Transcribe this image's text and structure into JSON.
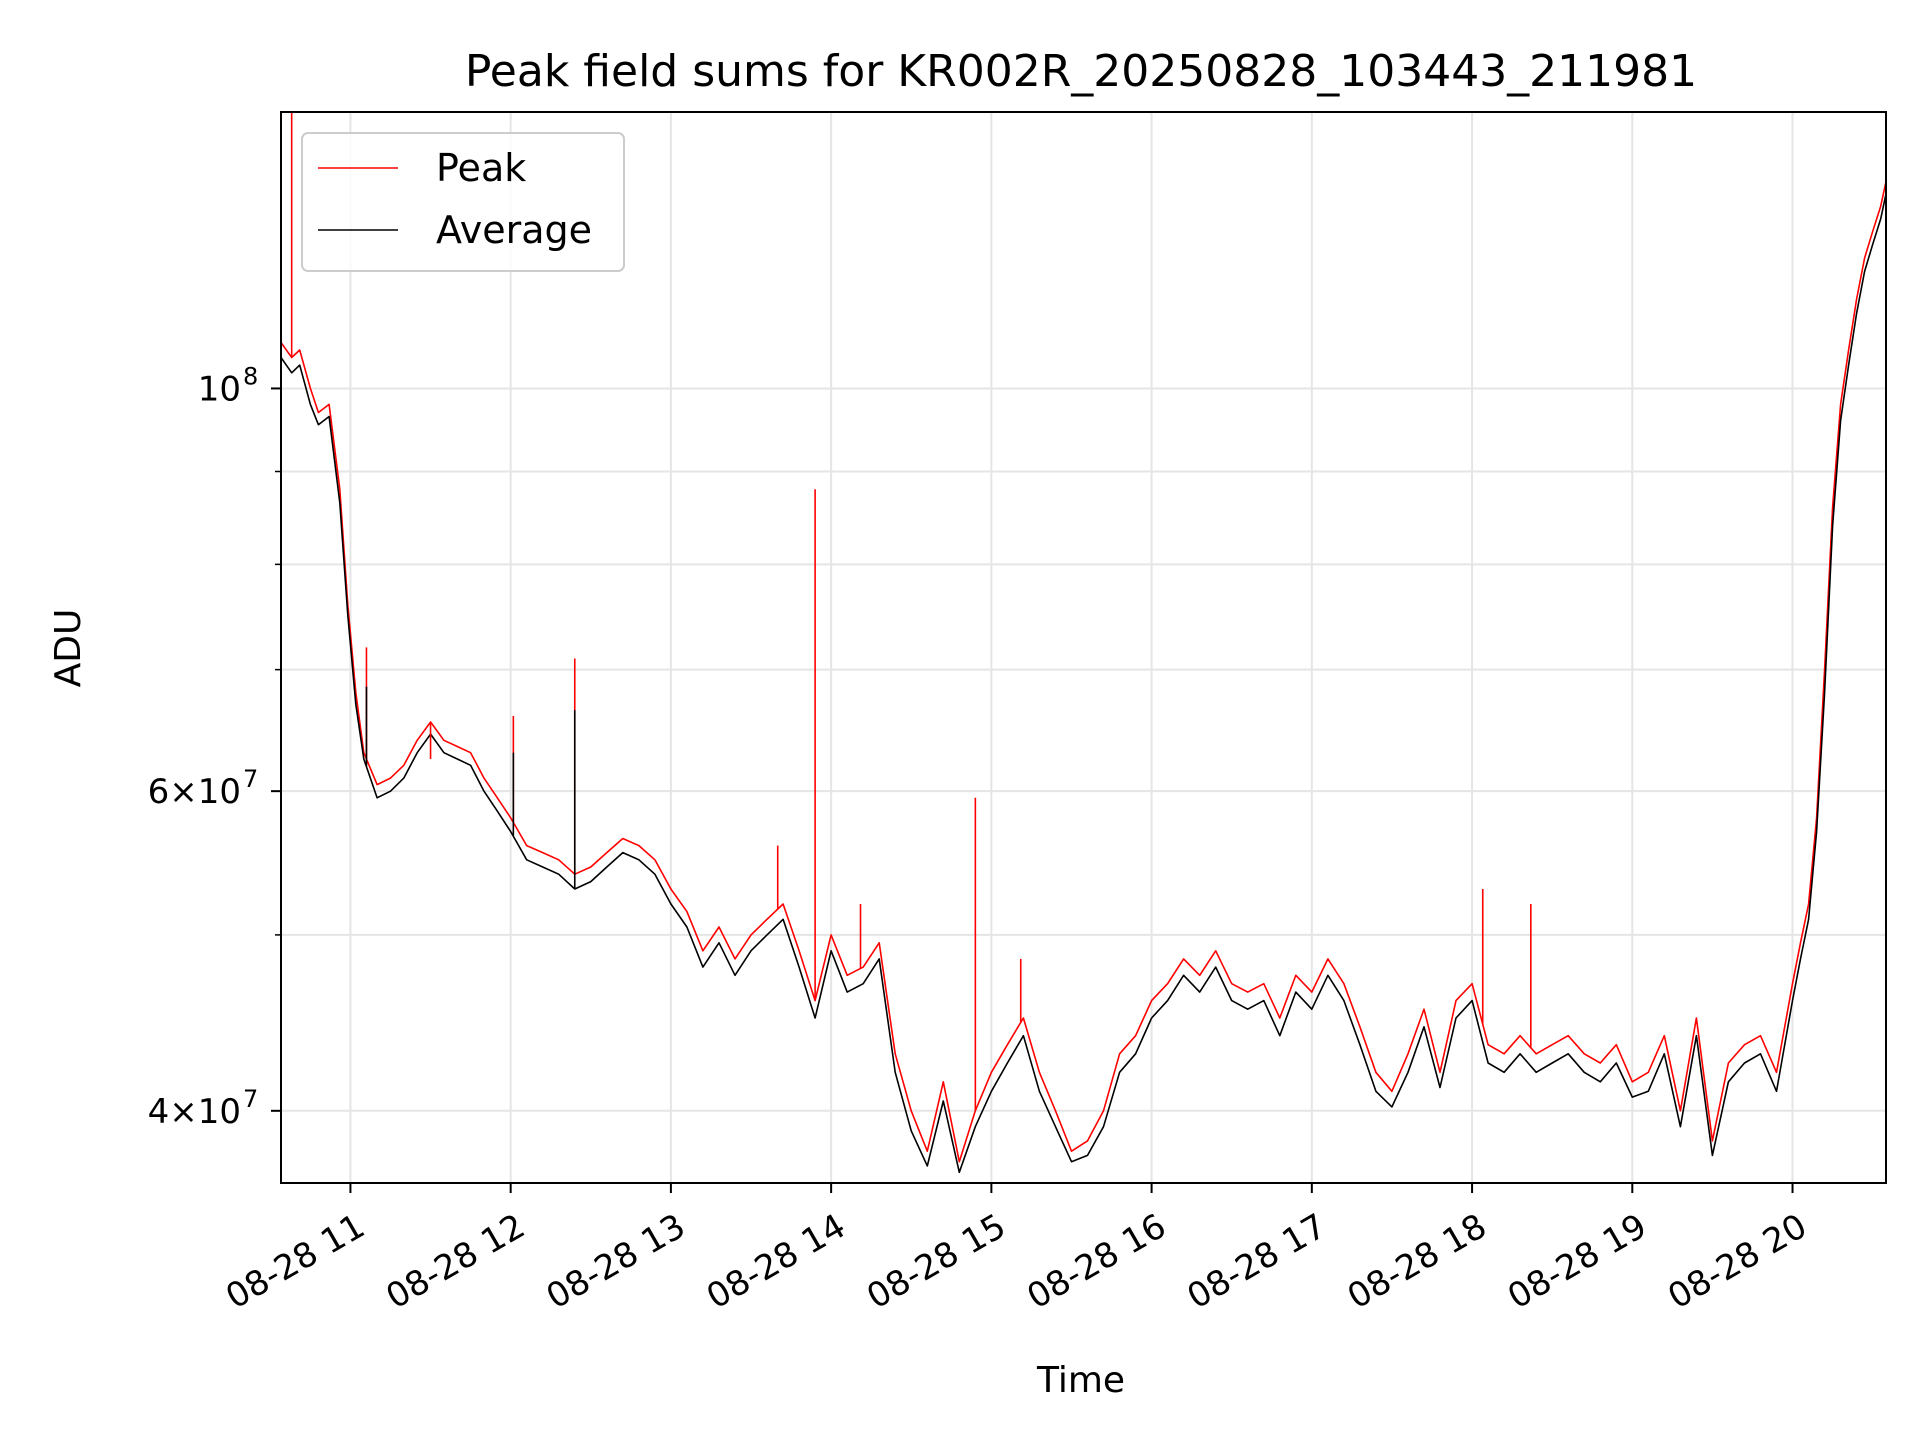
{
  "chart_data": {
    "type": "line",
    "title": "Peak field sums for KR002R_20250828_103443_211981",
    "xlabel": "Time",
    "ylabel": "ADU",
    "yscale": "log",
    "ylim": [
      36500000,
      142000000
    ],
    "xlim": [
      "2025-08-28 10:34",
      "2025-08-28 20:35"
    ],
    "x_ticks": [
      {
        "value": "2025-08-28 11:00",
        "label": "08-28 11"
      },
      {
        "value": "2025-08-28 12:00",
        "label": "08-28 12"
      },
      {
        "value": "2025-08-28 13:00",
        "label": "08-28 13"
      },
      {
        "value": "2025-08-28 14:00",
        "label": "08-28 14"
      },
      {
        "value": "2025-08-28 15:00",
        "label": "08-28 15"
      },
      {
        "value": "2025-08-28 16:00",
        "label": "08-28 16"
      },
      {
        "value": "2025-08-28 17:00",
        "label": "08-28 17"
      },
      {
        "value": "2025-08-28 18:00",
        "label": "08-28 18"
      },
      {
        "value": "2025-08-28 19:00",
        "label": "08-28 19"
      },
      {
        "value": "2025-08-28 20:00",
        "label": "08-28 20"
      }
    ],
    "y_ticks": [
      {
        "value": 40000000,
        "base": "4×10",
        "exp": "7"
      },
      {
        "value": 60000000,
        "base": "6×10",
        "exp": "7"
      },
      {
        "value": 100000000,
        "base": "10",
        "exp": "8"
      }
    ],
    "y_minor_ticks": [
      50000000,
      70000000,
      80000000,
      90000000
    ],
    "grid": true,
    "legend_position": "top-left",
    "series": [
      {
        "name": "Peak",
        "color": "#ff0000",
        "x": [
          "2025-08-28 10:34",
          "2025-08-28 10:38",
          "2025-08-28 10:41",
          "2025-08-28 10:45",
          "2025-08-28 10:48",
          "2025-08-28 10:52",
          "2025-08-28 10:56",
          "2025-08-28 10:59",
          "2025-08-28 11:02",
          "2025-08-28 11:05",
          "2025-08-28 11:10",
          "2025-08-28 11:15",
          "2025-08-28 11:20",
          "2025-08-28 11:25",
          "2025-08-28 11:30",
          "2025-08-28 11:35",
          "2025-08-28 11:40",
          "2025-08-28 11:45",
          "2025-08-28 11:50",
          "2025-08-28 11:55",
          "2025-08-28 12:00",
          "2025-08-28 12:06",
          "2025-08-28 12:12",
          "2025-08-28 12:18",
          "2025-08-28 12:24",
          "2025-08-28 12:30",
          "2025-08-28 12:36",
          "2025-08-28 12:42",
          "2025-08-28 12:48",
          "2025-08-28 12:54",
          "2025-08-28 13:00",
          "2025-08-28 13:06",
          "2025-08-28 13:12",
          "2025-08-28 13:18",
          "2025-08-28 13:24",
          "2025-08-28 13:30",
          "2025-08-28 13:36",
          "2025-08-28 13:42",
          "2025-08-28 13:48",
          "2025-08-28 13:54",
          "2025-08-28 14:00",
          "2025-08-28 14:06",
          "2025-08-28 14:12",
          "2025-08-28 14:18",
          "2025-08-28 14:24",
          "2025-08-28 14:30",
          "2025-08-28 14:36",
          "2025-08-28 14:42",
          "2025-08-28 14:48",
          "2025-08-28 14:54",
          "2025-08-28 15:00",
          "2025-08-28 15:06",
          "2025-08-28 15:12",
          "2025-08-28 15:18",
          "2025-08-28 15:24",
          "2025-08-28 15:30",
          "2025-08-28 15:36",
          "2025-08-28 15:42",
          "2025-08-28 15:48",
          "2025-08-28 15:54",
          "2025-08-28 16:00",
          "2025-08-28 16:06",
          "2025-08-28 16:12",
          "2025-08-28 16:18",
          "2025-08-28 16:24",
          "2025-08-28 16:30",
          "2025-08-28 16:36",
          "2025-08-28 16:42",
          "2025-08-28 16:48",
          "2025-08-28 16:54",
          "2025-08-28 17:00",
          "2025-08-28 17:06",
          "2025-08-28 17:12",
          "2025-08-28 17:18",
          "2025-08-28 17:24",
          "2025-08-28 17:30",
          "2025-08-28 17:36",
          "2025-08-28 17:42",
          "2025-08-28 17:48",
          "2025-08-28 17:54",
          "2025-08-28 18:00",
          "2025-08-28 18:06",
          "2025-08-28 18:12",
          "2025-08-28 18:18",
          "2025-08-28 18:24",
          "2025-08-28 18:30",
          "2025-08-28 18:36",
          "2025-08-28 18:42",
          "2025-08-28 18:48",
          "2025-08-28 18:54",
          "2025-08-28 19:00",
          "2025-08-28 19:06",
          "2025-08-28 19:12",
          "2025-08-28 19:18",
          "2025-08-28 19:24",
          "2025-08-28 19:30",
          "2025-08-28 19:36",
          "2025-08-28 19:42",
          "2025-08-28 19:48",
          "2025-08-28 19:54",
          "2025-08-28 20:00",
          "2025-08-28 20:03",
          "2025-08-28 20:06",
          "2025-08-28 20:09",
          "2025-08-28 20:12",
          "2025-08-28 20:15",
          "2025-08-28 20:18",
          "2025-08-28 20:21",
          "2025-08-28 20:24",
          "2025-08-28 20:27",
          "2025-08-28 20:30",
          "2025-08-28 20:33",
          "2025-08-28 20:35"
        ],
        "values": [
          106000000,
          104000000,
          105000000,
          100000000,
          97000000,
          98000000,
          88000000,
          76000000,
          68000000,
          63000000,
          60500000,
          61000000,
          62000000,
          64000000,
          65500000,
          64000000,
          63500000,
          63000000,
          61000000,
          59500000,
          58000000,
          56000000,
          55500000,
          55000000,
          54000000,
          54500000,
          55500000,
          56500000,
          56000000,
          55000000,
          53000000,
          51500000,
          49000000,
          50500000,
          48500000,
          50000000,
          51000000,
          52000000,
          49000000,
          46000000,
          50000000,
          47500000,
          48000000,
          49500000,
          43000000,
          40000000,
          38000000,
          41500000,
          37500000,
          40000000,
          42000000,
          43500000,
          45000000,
          42000000,
          40000000,
          38000000,
          38500000,
          40000000,
          43000000,
          44000000,
          46000000,
          47000000,
          48500000,
          47500000,
          49000000,
          47000000,
          46500000,
          47000000,
          45000000,
          47500000,
          46500000,
          48500000,
          47000000,
          44500000,
          42000000,
          41000000,
          43000000,
          45500000,
          42000000,
          46000000,
          47000000,
          43500000,
          43000000,
          44000000,
          43000000,
          43500000,
          44000000,
          43000000,
          42500000,
          43500000,
          41500000,
          42000000,
          44000000,
          40000000,
          45000000,
          38500000,
          42500000,
          43500000,
          44000000,
          42000000,
          47000000,
          49500000,
          52000000,
          58000000,
          70000000,
          86000000,
          98000000,
          105000000,
          112000000,
          118000000,
          122000000,
          126000000,
          130000000
        ]
      },
      {
        "name": "Average",
        "color": "#000000",
        "x": [
          "2025-08-28 10:34",
          "2025-08-28 10:38",
          "2025-08-28 10:41",
          "2025-08-28 10:45",
          "2025-08-28 10:48",
          "2025-08-28 10:52",
          "2025-08-28 10:56",
          "2025-08-28 10:59",
          "2025-08-28 11:02",
          "2025-08-28 11:05",
          "2025-08-28 11:10",
          "2025-08-28 11:15",
          "2025-08-28 11:20",
          "2025-08-28 11:25",
          "2025-08-28 11:30",
          "2025-08-28 11:35",
          "2025-08-28 11:40",
          "2025-08-28 11:45",
          "2025-08-28 11:50",
          "2025-08-28 11:55",
          "2025-08-28 12:00",
          "2025-08-28 12:06",
          "2025-08-28 12:12",
          "2025-08-28 12:18",
          "2025-08-28 12:24",
          "2025-08-28 12:30",
          "2025-08-28 12:36",
          "2025-08-28 12:42",
          "2025-08-28 12:48",
          "2025-08-28 12:54",
          "2025-08-28 13:00",
          "2025-08-28 13:06",
          "2025-08-28 13:12",
          "2025-08-28 13:18",
          "2025-08-28 13:24",
          "2025-08-28 13:30",
          "2025-08-28 13:36",
          "2025-08-28 13:42",
          "2025-08-28 13:48",
          "2025-08-28 13:54",
          "2025-08-28 14:00",
          "2025-08-28 14:06",
          "2025-08-28 14:12",
          "2025-08-28 14:18",
          "2025-08-28 14:24",
          "2025-08-28 14:30",
          "2025-08-28 14:36",
          "2025-08-28 14:42",
          "2025-08-28 14:48",
          "2025-08-28 14:54",
          "2025-08-28 15:00",
          "2025-08-28 15:06",
          "2025-08-28 15:12",
          "2025-08-28 15:18",
          "2025-08-28 15:24",
          "2025-08-28 15:30",
          "2025-08-28 15:36",
          "2025-08-28 15:42",
          "2025-08-28 15:48",
          "2025-08-28 15:54",
          "2025-08-28 16:00",
          "2025-08-28 16:06",
          "2025-08-28 16:12",
          "2025-08-28 16:18",
          "2025-08-28 16:24",
          "2025-08-28 16:30",
          "2025-08-28 16:36",
          "2025-08-28 16:42",
          "2025-08-28 16:48",
          "2025-08-28 16:54",
          "2025-08-28 17:00",
          "2025-08-28 17:06",
          "2025-08-28 17:12",
          "2025-08-28 17:18",
          "2025-08-28 17:24",
          "2025-08-28 17:30",
          "2025-08-28 17:36",
          "2025-08-28 17:42",
          "2025-08-28 17:48",
          "2025-08-28 17:54",
          "2025-08-28 18:00",
          "2025-08-28 18:06",
          "2025-08-28 18:12",
          "2025-08-28 18:18",
          "2025-08-28 18:24",
          "2025-08-28 18:30",
          "2025-08-28 18:36",
          "2025-08-28 18:42",
          "2025-08-28 18:48",
          "2025-08-28 18:54",
          "2025-08-28 19:00",
          "2025-08-28 19:06",
          "2025-08-28 19:12",
          "2025-08-28 19:18",
          "2025-08-28 19:24",
          "2025-08-28 19:30",
          "2025-08-28 19:36",
          "2025-08-28 19:42",
          "2025-08-28 19:48",
          "2025-08-28 19:54",
          "2025-08-28 20:00",
          "2025-08-28 20:03",
          "2025-08-28 20:06",
          "2025-08-28 20:09",
          "2025-08-28 20:12",
          "2025-08-28 20:15",
          "2025-08-28 20:18",
          "2025-08-28 20:21",
          "2025-08-28 20:24",
          "2025-08-28 20:27",
          "2025-08-28 20:30",
          "2025-08-28 20:33",
          "2025-08-28 20:35"
        ],
        "values": [
          104000000,
          102000000,
          103000000,
          98000000,
          95500000,
          96500000,
          86500000,
          75000000,
          67000000,
          62500000,
          59500000,
          60000000,
          61000000,
          63000000,
          64500000,
          63000000,
          62500000,
          62000000,
          60000000,
          58500000,
          57000000,
          55000000,
          54500000,
          54000000,
          53000000,
          53500000,
          54500000,
          55500000,
          55000000,
          54000000,
          52000000,
          50500000,
          48000000,
          49500000,
          47500000,
          49000000,
          50000000,
          51000000,
          48000000,
          45000000,
          49000000,
          46500000,
          47000000,
          48500000,
          42000000,
          39000000,
          37300000,
          40500000,
          37000000,
          39200000,
          41000000,
          42500000,
          44000000,
          41000000,
          39200000,
          37500000,
          37800000,
          39200000,
          42000000,
          43000000,
          45000000,
          46000000,
          47500000,
          46500000,
          48000000,
          46000000,
          45500000,
          46000000,
          44000000,
          46500000,
          45500000,
          47500000,
          46000000,
          43500000,
          41000000,
          40200000,
          42000000,
          44500000,
          41200000,
          45000000,
          46000000,
          42500000,
          42000000,
          43000000,
          42000000,
          42500000,
          43000000,
          42000000,
          41500000,
          42500000,
          40700000,
          41000000,
          43000000,
          39200000,
          44000000,
          37800000,
          41500000,
          42500000,
          43000000,
          41000000,
          46000000,
          48500000,
          51000000,
          57000000,
          68000000,
          84000000,
          96000000,
          103000000,
          110000000,
          116000000,
          120000000,
          124000000,
          128000000
        ]
      }
    ],
    "annotations": [
      {
        "series": "Peak",
        "type": "spike",
        "x": "2025-08-28 10:38",
        "value": 142000000
      },
      {
        "series": "Peak",
        "type": "spike",
        "x": "2025-08-28 11:06",
        "value": 72000000
      },
      {
        "series": "Average",
        "type": "spike",
        "x": "2025-08-28 11:06",
        "value": 68500000
      },
      {
        "series": "Peak",
        "type": "spike",
        "x": "2025-08-28 11:30",
        "value": 62500000
      },
      {
        "series": "Peak",
        "type": "spike",
        "x": "2025-08-28 12:01",
        "value": 66000000
      },
      {
        "series": "Average",
        "type": "spike",
        "x": "2025-08-28 12:01",
        "value": 63000000
      },
      {
        "series": "Peak",
        "type": "spike",
        "x": "2025-08-28 12:24",
        "value": 71000000
      },
      {
        "series": "Average",
        "type": "spike",
        "x": "2025-08-28 12:24",
        "value": 66500000
      },
      {
        "series": "Peak",
        "type": "spike",
        "x": "2025-08-28 13:40",
        "value": 56000000
      },
      {
        "series": "Peak",
        "type": "spike",
        "x": "2025-08-28 13:54",
        "value": 88000000
      },
      {
        "series": "Peak",
        "type": "spike",
        "x": "2025-08-28 14:11",
        "value": 52000000
      },
      {
        "series": "Peak",
        "type": "spike",
        "x": "2025-08-28 14:54",
        "value": 59500000
      },
      {
        "series": "Peak",
        "type": "spike",
        "x": "2025-08-28 15:11",
        "value": 48500000
      },
      {
        "series": "Peak",
        "type": "spike",
        "x": "2025-08-28 18:04",
        "value": 53000000
      },
      {
        "series": "Peak",
        "type": "spike",
        "x": "2025-08-28 18:22",
        "value": 52000000
      }
    ]
  }
}
